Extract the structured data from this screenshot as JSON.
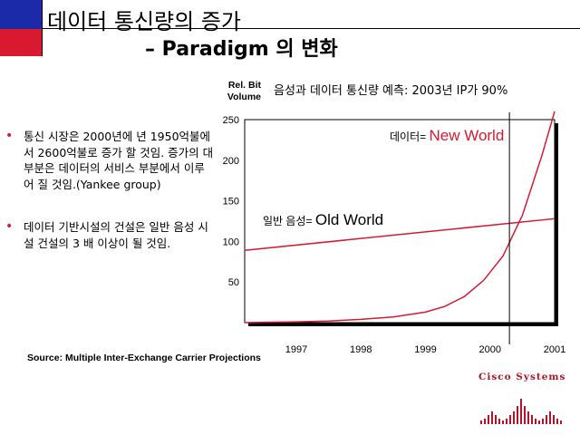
{
  "slide": {
    "title_line1": "데이터 통신량의 증가",
    "title_line2": "– Paradigm  의 변화",
    "rel_bit_volume": "Rel. Bit Volume",
    "subtitle": "음성과 데이터 통신량 예측: 2003년 IP가 90%",
    "source": "Source: Multiple Inter-Exchange Carrier Projections",
    "bullets": [
      "통신 시장은 2000년에 년 1950억불에서 2600억불로 증가 할 것임. 증가의 대 부분은 데이터의 서비스 부분에서 이루어 질 것임.(Yankee group)",
      "데이터 기반시설의 건설은 일반 음성 시설 건설의 3 배 이상이 될 것임."
    ],
    "logo_text": "Cisco Systems",
    "colors": {
      "top_square": "#1b2aa8",
      "bottom_square": "#d8192f",
      "curve": "#d8192f",
      "logo": "#b31428"
    }
  },
  "chart_data": {
    "type": "line",
    "ylabel": "Rel. Bit Volume",
    "x": [
      1997,
      1998,
      1999,
      2000,
      2001
    ],
    "xlim": [
      1996.2,
      2001
    ],
    "ylim": [
      0,
      250
    ],
    "yticks": [
      50,
      100,
      150,
      200,
      250
    ],
    "xticks": [
      1997,
      1998,
      1999,
      2000,
      2001
    ],
    "crossover_x": 2000.3,
    "series": [
      {
        "name": "데이터= New World",
        "label_prefix": "데이터= ",
        "label_main": "New World",
        "x": [
          1996.2,
          1997,
          1997.5,
          1998,
          1998.5,
          1999,
          1999.3,
          1999.6,
          1999.9,
          2000.2,
          2000.5,
          2000.8,
          2001
        ],
        "y": [
          0,
          1,
          2,
          4,
          7,
          13,
          20,
          32,
          52,
          82,
          132,
          205,
          262
        ]
      },
      {
        "name": "일반 음성= Old World",
        "label_prefix": "일반 음성= ",
        "label_main": "Old World",
        "x": [
          1996.2,
          2001
        ],
        "y": [
          89,
          128
        ]
      }
    ]
  }
}
